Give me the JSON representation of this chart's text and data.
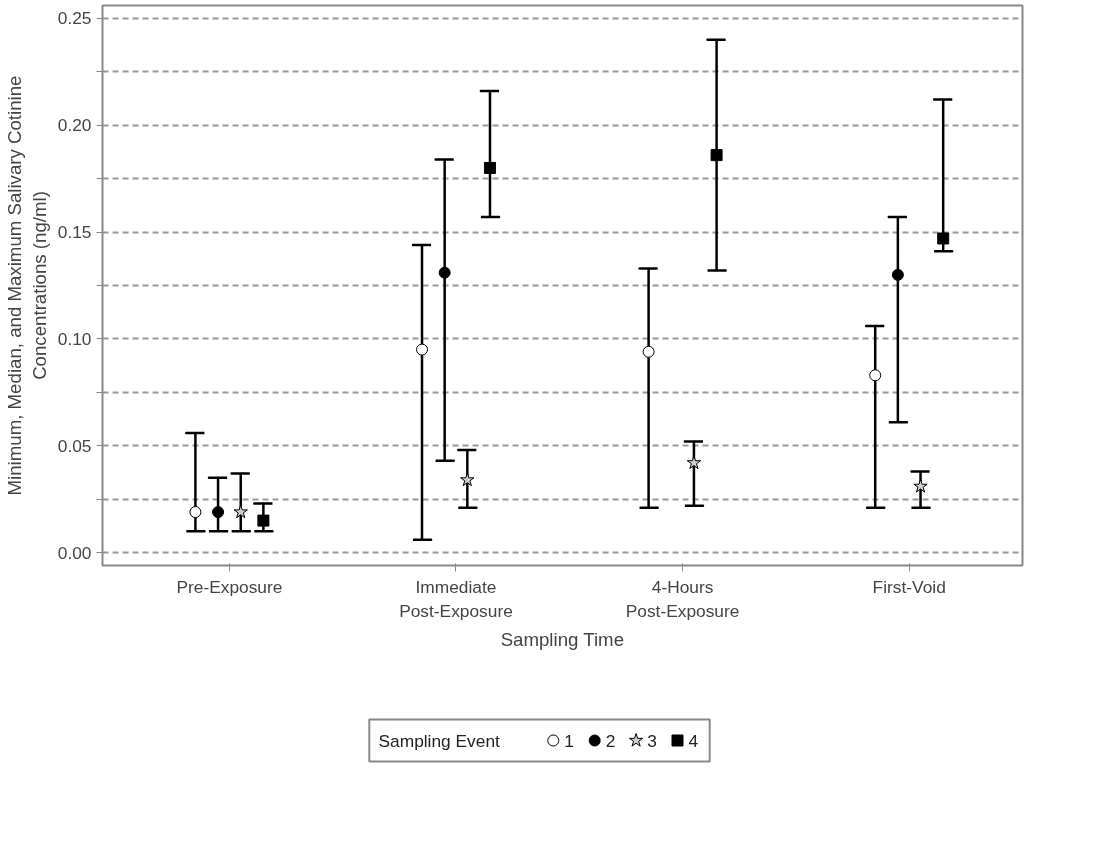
{
  "chart_data": {
    "type": "scatter",
    "xlabel": "Sampling Time",
    "ylabel": "Minimum, Median, and Maximum Salivary Cotinine\nConcentrations (ng/ml)",
    "legend_title": "Sampling Event",
    "categories": [
      "Pre-Exposure",
      "Immediate\nPost-Exposure",
      "4-Hours\nPost-Exposure",
      "First-Void"
    ],
    "series": [
      {
        "name": "1",
        "color": "#ffffff",
        "marker": "circle",
        "values": [
          0.019,
          0.095,
          0.094,
          0.083
        ],
        "errors": [
          [
            0.01,
            0.056
          ],
          [
            0.006,
            0.144
          ],
          [
            0.021,
            0.133
          ],
          [
            0.021,
            0.106
          ]
        ]
      },
      {
        "name": "2",
        "color": "#000000",
        "marker": "circle",
        "values": [
          0.019,
          0.131,
          null,
          0.13
        ],
        "errors": [
          [
            0.01,
            0.035
          ],
          [
            0.043,
            0.184
          ],
          null,
          [
            0.061,
            0.157
          ]
        ]
      },
      {
        "name": "3",
        "color": "#d0d0d0",
        "marker": "star",
        "values": [
          0.019,
          0.034,
          0.042,
          0.031
        ],
        "errors": [
          [
            0.01,
            0.037
          ],
          [
            0.021,
            0.048
          ],
          [
            0.022,
            0.052
          ],
          [
            0.021,
            0.038
          ]
        ]
      },
      {
        "name": "4",
        "color": "#000000",
        "marker": "square",
        "values": [
          0.015,
          0.18,
          0.186,
          0.147
        ],
        "errors": [
          [
            0.01,
            0.023
          ],
          [
            0.157,
            0.216
          ],
          [
            0.132,
            0.24
          ],
          [
            0.141,
            0.212
          ]
        ]
      }
    ],
    "ylim": [
      -0.006,
      0.256
    ],
    "yticks": [
      {
        "value": 0,
        "label": "0.00"
      },
      {
        "value": 0.025,
        "label": null
      },
      {
        "value": 0.05,
        "label": "0.05"
      },
      {
        "value": 0.075,
        "label": null
      },
      {
        "value": 0.1,
        "label": "0.10"
      },
      {
        "value": 0.125,
        "label": null
      },
      {
        "value": 0.15,
        "label": "0.15"
      },
      {
        "value": 0.175,
        "label": null
      },
      {
        "value": 0.2,
        "label": "0.20"
      },
      {
        "value": 0.225,
        "label": null
      },
      {
        "value": 0.25,
        "label": "0.25"
      }
    ],
    "grid": "y",
    "legend": "bottom"
  }
}
